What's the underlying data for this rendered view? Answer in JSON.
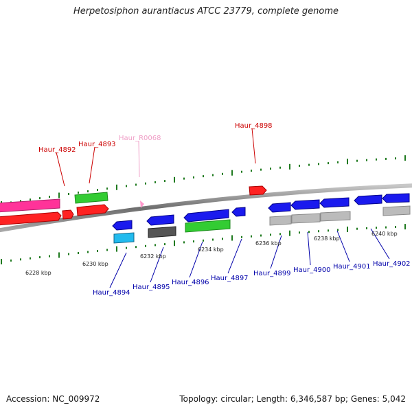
{
  "title": "Herpetosiphon aurantiacus ATCC 23779, complete genome",
  "footer": {
    "accession": "Accession: NC_009972",
    "summary": "Topology: circular; Length: 6,346,587 bp; Genes: 5,042"
  },
  "colors": {
    "backbone": "#888888",
    "tick": "#1f7a1f",
    "top_label": "#cc0000",
    "bottom_label": "#0000aa",
    "rna_label": "#f0a0c8"
  },
  "scale_labels": [
    "6228 kbp",
    "6230 kbp",
    "6232 kbp",
    "6234 kbp",
    "6236 kbp",
    "6238 kbp",
    "6240 kbp"
  ],
  "top_labels": [
    "Haur_4892",
    "Haur_4893",
    "Haur_R0068",
    "Haur_4898"
  ],
  "bottom_labels": [
    "Haur_4894",
    "Haur_4895",
    "Haur_4896",
    "Haur_4897",
    "Haur_4899",
    "Haur_4900",
    "Haur_4901",
    "Haur_4902"
  ]
}
